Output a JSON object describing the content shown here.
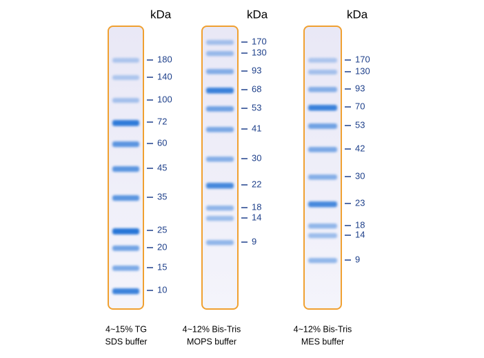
{
  "lanes": [
    {
      "unit": "kDa",
      "markers": [
        "180",
        "140",
        "100",
        "72",
        "60",
        "45",
        "35",
        "25",
        "20",
        "15",
        "10"
      ],
      "caption": [
        "4~15% TG",
        "SDS buffer"
      ]
    },
    {
      "unit": "kDa",
      "markers": [
        "170",
        "130",
        "93",
        "68",
        "53",
        "41",
        "30",
        "22",
        "18",
        "14",
        "9"
      ],
      "caption": [
        "4~12% Bis-Tris",
        "MOPS buffer"
      ]
    },
    {
      "unit": "kDa",
      "markers": [
        "170",
        "130",
        "93",
        "70",
        "53",
        "42",
        "30",
        "23",
        "18",
        "14",
        "9"
      ],
      "caption": [
        "4~12% Bis-Tris",
        "MES buffer"
      ]
    }
  ]
}
